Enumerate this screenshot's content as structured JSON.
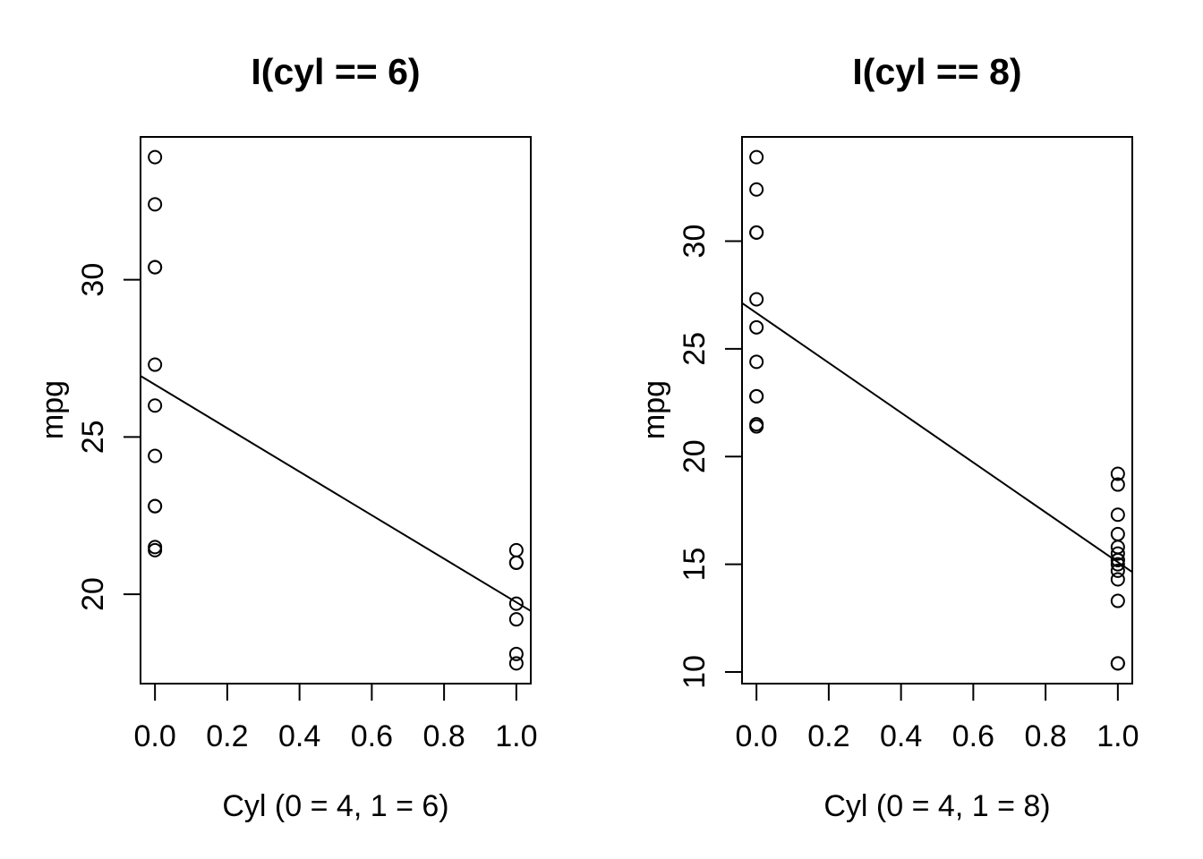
{
  "figure": {
    "background": "#ffffff",
    "foreground": "#000000",
    "marker": "open-circle"
  },
  "chart_data": [
    {
      "type": "scatter",
      "title": "I(cyl == 6)",
      "xlabel": "Cyl (0 = 4, 1 = 6)",
      "ylabel": "mpg",
      "xlim": [
        0,
        1
      ],
      "ylim": [
        17.8,
        33.9
      ],
      "x_ticks": {
        "values": [
          0,
          0.2,
          0.4,
          0.6,
          0.8,
          1
        ],
        "labels": [
          "0.0",
          "0.2",
          "0.4",
          "0.6",
          "0.8",
          "1.0"
        ]
      },
      "y_ticks": {
        "values": [
          20,
          25,
          30
        ],
        "labels": [
          "20",
          "25",
          "30"
        ]
      },
      "points": [
        [
          0,
          22.8
        ],
        [
          0,
          24.4
        ],
        [
          0,
          22.8
        ],
        [
          0,
          32.4
        ],
        [
          0,
          30.4
        ],
        [
          0,
          33.9
        ],
        [
          0,
          21.5
        ],
        [
          0,
          27.3
        ],
        [
          0,
          26.0
        ],
        [
          0,
          30.4
        ],
        [
          0,
          21.4
        ],
        [
          1,
          21.0
        ],
        [
          1,
          21.0
        ],
        [
          1,
          21.4
        ],
        [
          1,
          18.1
        ],
        [
          1,
          19.2
        ],
        [
          1,
          17.8
        ],
        [
          1,
          19.7
        ]
      ],
      "regression_line": {
        "intercept": 26.664,
        "slope": -6.921
      },
      "grid": false,
      "legend": null
    },
    {
      "type": "scatter",
      "title": "I(cyl == 8)",
      "xlabel": "Cyl (0 = 4, 1 = 8)",
      "ylabel": "mpg",
      "xlim": [
        0,
        1
      ],
      "ylim": [
        10.4,
        33.9
      ],
      "x_ticks": {
        "values": [
          0,
          0.2,
          0.4,
          0.6,
          0.8,
          1
        ],
        "labels": [
          "0.0",
          "0.2",
          "0.4",
          "0.6",
          "0.8",
          "1.0"
        ]
      },
      "y_ticks": {
        "values": [
          10,
          15,
          20,
          25,
          30
        ],
        "labels": [
          "10",
          "15",
          "20",
          "25",
          "30"
        ]
      },
      "points": [
        [
          0,
          22.8
        ],
        [
          0,
          24.4
        ],
        [
          0,
          22.8
        ],
        [
          0,
          32.4
        ],
        [
          0,
          30.4
        ],
        [
          0,
          33.9
        ],
        [
          0,
          21.5
        ],
        [
          0,
          27.3
        ],
        [
          0,
          26.0
        ],
        [
          0,
          30.4
        ],
        [
          0,
          21.4
        ],
        [
          1,
          18.7
        ],
        [
          1,
          14.3
        ],
        [
          1,
          16.4
        ],
        [
          1,
          17.3
        ],
        [
          1,
          15.2
        ],
        [
          1,
          10.4
        ],
        [
          1,
          10.4
        ],
        [
          1,
          14.7
        ],
        [
          1,
          15.5
        ],
        [
          1,
          15.2
        ],
        [
          1,
          13.3
        ],
        [
          1,
          19.2
        ],
        [
          1,
          15.8
        ],
        [
          1,
          15.0
        ]
      ],
      "regression_line": {
        "intercept": 26.664,
        "slope": -11.564
      },
      "grid": false,
      "legend": null
    }
  ]
}
